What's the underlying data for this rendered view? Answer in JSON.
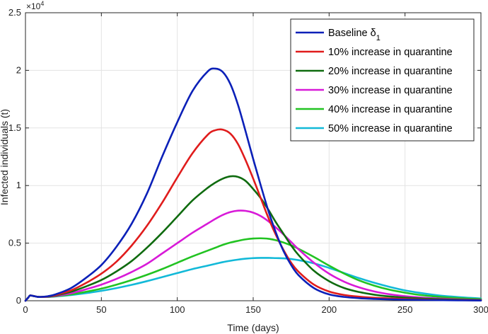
{
  "chart_data": {
    "type": "line",
    "title": "",
    "xlabel": "Time (days)",
    "ylabel": "Infected individuals (t)",
    "xlim": [
      0,
      300
    ],
    "ylim": [
      0,
      25000
    ],
    "grid": true,
    "legend_position": "top-right",
    "y_exponent": {
      "base": "×10",
      "power": "4"
    },
    "x_ticks": [
      {
        "value": 0,
        "label": "0"
      },
      {
        "value": 50,
        "label": "50"
      },
      {
        "value": 100,
        "label": "100"
      },
      {
        "value": 150,
        "label": "150"
      },
      {
        "value": 200,
        "label": "200"
      },
      {
        "value": 250,
        "label": "250"
      },
      {
        "value": 300,
        "label": "300"
      }
    ],
    "y_ticks": [
      {
        "value": 0,
        "label": "0"
      },
      {
        "value": 5000,
        "label": "0.5"
      },
      {
        "value": 10000,
        "label": "1"
      },
      {
        "value": 15000,
        "label": "1.5"
      },
      {
        "value": 20000,
        "label": "2"
      },
      {
        "value": 25000,
        "label": "2.5"
      }
    ],
    "x": [
      0,
      2,
      3,
      5,
      8,
      10,
      15,
      20,
      30,
      40,
      50,
      60,
      70,
      80,
      90,
      100,
      110,
      120,
      125,
      130,
      135,
      140,
      145,
      150,
      155,
      160,
      165,
      170,
      175,
      180,
      190,
      200,
      210,
      220,
      230,
      240,
      250,
      260,
      270,
      280,
      290,
      300
    ],
    "series": [
      {
        "name": "Baseline",
        "legend_main": "Baseline δ",
        "legend_sub": "1",
        "color": "#0b20b8",
        "values": [
          0,
          300,
          450,
          420,
          340,
          330,
          400,
          560,
          1100,
          2000,
          3100,
          4700,
          6700,
          9300,
          12500,
          15500,
          18200,
          19900,
          20150,
          19850,
          18800,
          17000,
          14700,
          12300,
          10000,
          7800,
          5900,
          4300,
          3100,
          2200,
          1100,
          550,
          330,
          220,
          160,
          120,
          90,
          70,
          55,
          40,
          30,
          20
        ]
      },
      {
        "name": "10% increase in quarantine",
        "color": "#e01c1c",
        "values": [
          0,
          300,
          450,
          420,
          340,
          330,
          380,
          500,
          900,
          1550,
          2350,
          3400,
          4800,
          6500,
          8500,
          10700,
          12800,
          14400,
          14800,
          14850,
          14500,
          13600,
          12200,
          10600,
          8900,
          7200,
          5700,
          4400,
          3300,
          2500,
          1400,
          800,
          500,
          350,
          260,
          200,
          150,
          110,
          85,
          65,
          45,
          30
        ]
      },
      {
        "name": "20% increase in quarantine",
        "color": "#0f6b0f",
        "values": [
          0,
          300,
          450,
          420,
          340,
          330,
          360,
          460,
          780,
          1250,
          1800,
          2550,
          3450,
          4600,
          5900,
          7300,
          8700,
          9800,
          10250,
          10600,
          10800,
          10750,
          10400,
          9700,
          8900,
          7900,
          6800,
          5800,
          4800,
          3950,
          2600,
          1700,
          1100,
          750,
          520,
          370,
          270,
          200,
          150,
          110,
          80,
          55
        ]
      },
      {
        "name": "30% increase in quarantine",
        "color": "#d81ad8",
        "values": [
          0,
          300,
          450,
          420,
          340,
          330,
          350,
          420,
          650,
          1000,
          1400,
          1900,
          2500,
          3200,
          4100,
          5000,
          5900,
          6700,
          7100,
          7450,
          7700,
          7820,
          7800,
          7650,
          7350,
          6900,
          6350,
          5750,
          5100,
          4450,
          3300,
          2350,
          1650,
          1150,
          800,
          560,
          400,
          290,
          210,
          150,
          110,
          80
        ]
      },
      {
        "name": "40% increase in quarantine",
        "color": "#22c322",
        "values": [
          0,
          300,
          450,
          420,
          340,
          330,
          340,
          390,
          550,
          780,
          1050,
          1400,
          1800,
          2250,
          2750,
          3300,
          3850,
          4350,
          4600,
          4850,
          5050,
          5200,
          5330,
          5400,
          5420,
          5380,
          5250,
          5050,
          4800,
          4500,
          3800,
          3050,
          2350,
          1750,
          1300,
          950,
          700,
          500,
          370,
          270,
          200,
          140
        ]
      },
      {
        "name": "50% increase in quarantine",
        "color": "#12b9d8",
        "values": [
          0,
          300,
          450,
          420,
          340,
          330,
          330,
          370,
          490,
          660,
          860,
          1100,
          1380,
          1700,
          2050,
          2400,
          2750,
          3050,
          3200,
          3350,
          3470,
          3570,
          3650,
          3700,
          3720,
          3720,
          3700,
          3680,
          3620,
          3520,
          3250,
          2850,
          2400,
          1950,
          1550,
          1200,
          900,
          680,
          500,
          370,
          270,
          200
        ]
      }
    ]
  }
}
